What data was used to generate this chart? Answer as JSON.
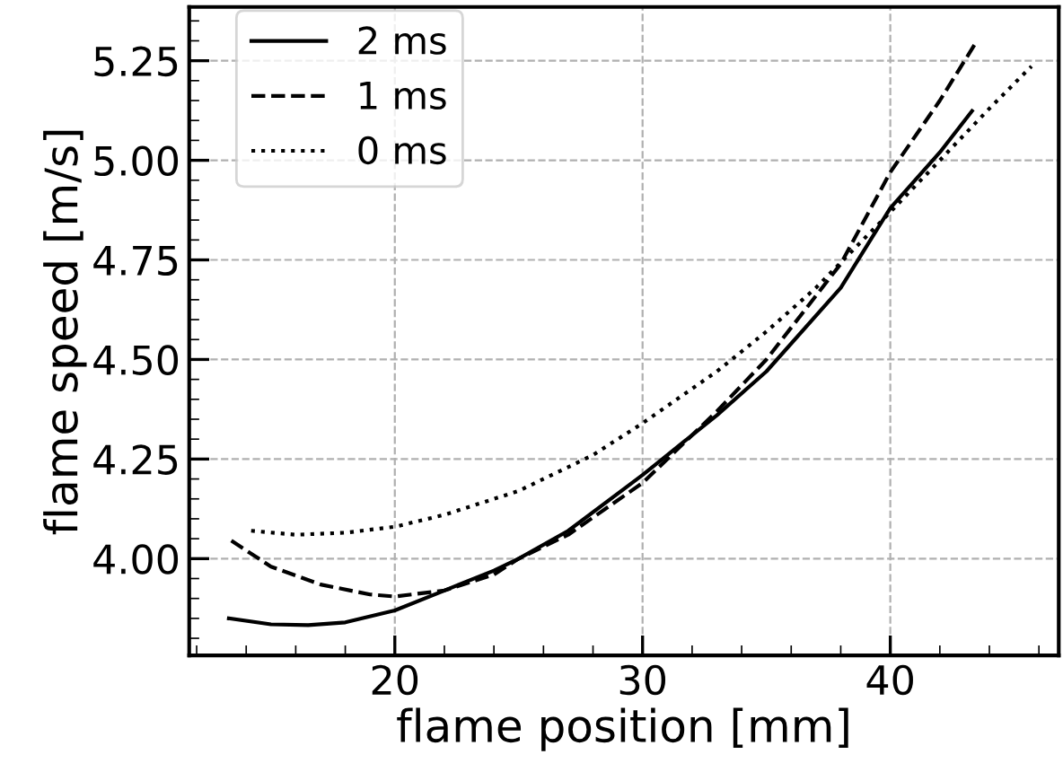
{
  "chart_data": {
    "type": "line",
    "xlabel": "flame position [mm]",
    "ylabel": "flame speed [m/s]",
    "xlim": [
      11.7,
      46.8
    ],
    "ylim": [
      3.757,
      5.385
    ],
    "xticks": [
      20,
      30,
      40
    ],
    "yticks": [
      {
        "value": 4.0,
        "label": "4.00"
      },
      {
        "value": 4.25,
        "label": "4.25"
      },
      {
        "value": 4.5,
        "label": "4.50"
      },
      {
        "value": 4.75,
        "label": "4.75"
      },
      {
        "value": 5.0,
        "label": "5.00"
      },
      {
        "value": 5.25,
        "label": "5.25"
      }
    ],
    "grid": true,
    "legend": "top left",
    "series": [
      {
        "name": "2 ms",
        "color": "#000000",
        "line_style": "solid",
        "x": [
          13.3,
          15,
          16.5,
          18,
          20,
          22,
          24,
          25,
          27,
          30,
          33,
          35,
          38,
          40,
          42,
          43.3
        ],
        "values": [
          3.85,
          3.835,
          3.833,
          3.84,
          3.87,
          3.92,
          3.97,
          4.0,
          4.07,
          4.21,
          4.36,
          4.47,
          4.68,
          4.88,
          5.02,
          5.124
        ]
      },
      {
        "name": "1 ms",
        "color": "#000000",
        "line_style": "dashed",
        "x": [
          13.4,
          15,
          17,
          19,
          20,
          22,
          24,
          25,
          27,
          30,
          33,
          35,
          38,
          40,
          42,
          43.5
        ],
        "values": [
          4.045,
          3.98,
          3.935,
          3.91,
          3.905,
          3.92,
          3.96,
          4.0,
          4.06,
          4.19,
          4.37,
          4.5,
          4.74,
          4.97,
          5.15,
          5.3
        ]
      },
      {
        "name": "0 ms",
        "color": "#000000",
        "line_style": "dotted",
        "x": [
          14.2,
          16,
          18,
          20,
          22,
          25,
          28,
          30,
          33,
          35,
          37,
          40,
          42,
          44,
          45.7
        ],
        "values": [
          4.07,
          4.06,
          4.065,
          4.08,
          4.11,
          4.17,
          4.26,
          4.34,
          4.47,
          4.57,
          4.68,
          4.87,
          5.0,
          5.13,
          5.236
        ]
      }
    ]
  }
}
